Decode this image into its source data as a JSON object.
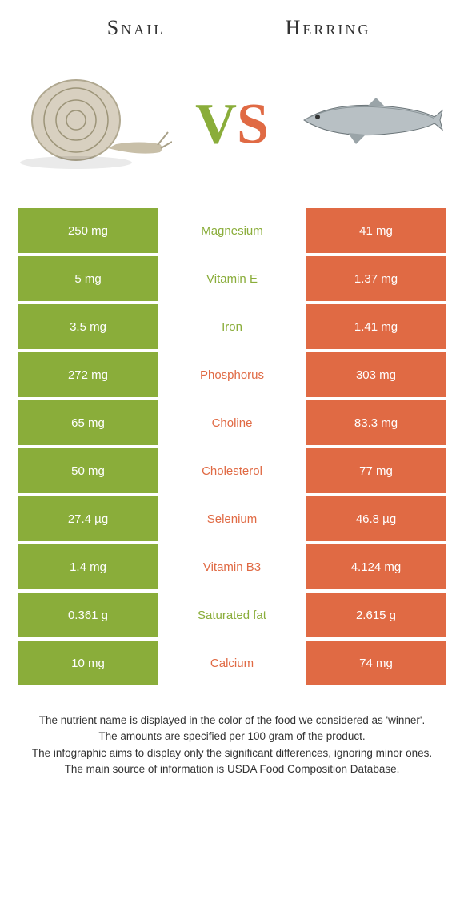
{
  "header": {
    "left": "Snail",
    "right": "Herring"
  },
  "vs": {
    "v": "V",
    "s": "S"
  },
  "colors": {
    "green": "#8aad3a",
    "orange": "#e06a44"
  },
  "rows": [
    {
      "left": "250 mg",
      "label": "Magnesium",
      "right": "41 mg",
      "winner": "left"
    },
    {
      "left": "5 mg",
      "label": "Vitamin E",
      "right": "1.37 mg",
      "winner": "left"
    },
    {
      "left": "3.5 mg",
      "label": "Iron",
      "right": "1.41 mg",
      "winner": "left"
    },
    {
      "left": "272 mg",
      "label": "Phosphorus",
      "right": "303 mg",
      "winner": "right"
    },
    {
      "left": "65 mg",
      "label": "Choline",
      "right": "83.3 mg",
      "winner": "right"
    },
    {
      "left": "50 mg",
      "label": "Cholesterol",
      "right": "77 mg",
      "winner": "right"
    },
    {
      "left": "27.4 µg",
      "label": "Selenium",
      "right": "46.8 µg",
      "winner": "right"
    },
    {
      "left": "1.4 mg",
      "label": "Vitamin B3",
      "right": "4.124 mg",
      "winner": "right"
    },
    {
      "left": "0.361 g",
      "label": "Saturated fat",
      "right": "2.615 g",
      "winner": "left"
    },
    {
      "left": "10 mg",
      "label": "Calcium",
      "right": "74 mg",
      "winner": "right"
    }
  ],
  "footer": {
    "l1": "The nutrient name is displayed in the color of the food we considered as 'winner'.",
    "l2": "The amounts are specified per 100 gram of the product.",
    "l3": "The infographic aims to display only the significant differences, ignoring minor ones.",
    "l4": "The main source of information is USDA Food Composition Database."
  }
}
